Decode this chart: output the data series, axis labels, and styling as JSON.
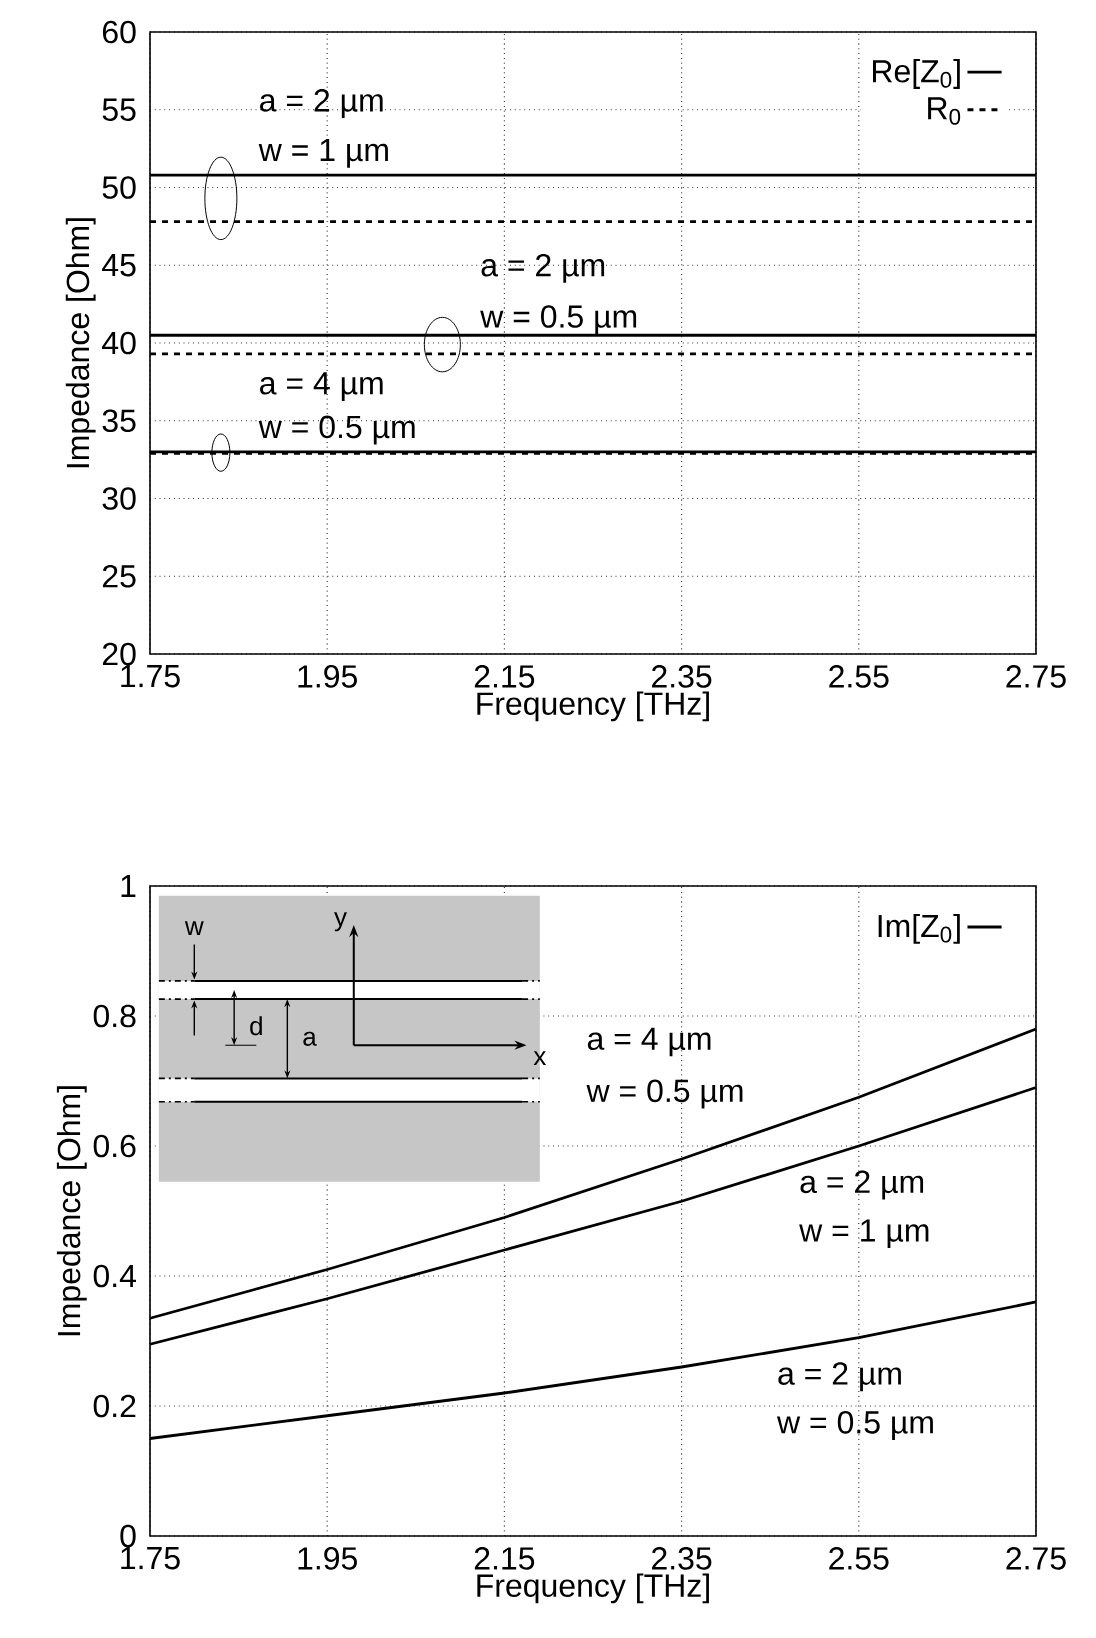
{
  "chart_data": [
    {
      "type": "line",
      "xlabel": "Frequency [THz]",
      "ylabel": "Impedance [Ohm]",
      "xlim": [
        1.75,
        2.75
      ],
      "ylim": [
        20,
        60
      ],
      "xticks": [
        1.75,
        1.95,
        2.15,
        2.35,
        2.55,
        2.75
      ],
      "yticks": [
        20,
        25,
        30,
        35,
        40,
        45,
        50,
        55,
        60
      ],
      "grid": true,
      "legend": "top right",
      "x": [
        1.75,
        2.75
      ],
      "series": [
        {
          "name": "Re[Z$_{0}$]",
          "color": "#000000",
          "line_style": "solid",
          "values": [
            50.8,
            50.8
          ]
        },
        {
          "color": "#000000",
          "line_style": "solid",
          "values": [
            40.5,
            40.5
          ]
        },
        {
          "color": "#000000",
          "line_style": "solid",
          "values": [
            33.0,
            33.0
          ]
        },
        {
          "name": "R$_{0}$",
          "color": "#000000",
          "line_style": "dashed",
          "values": [
            47.8,
            47.8
          ]
        },
        {
          "color": "#000000",
          "line_style": "dashed",
          "values": [
            39.3,
            39.3
          ]
        },
        {
          "color": "#000000",
          "line_style": "dashed",
          "values": [
            32.9,
            32.9
          ]
        }
      ],
      "annotations": [
        "a = 2 µm",
        "w = 1 µm",
        "a = 2 µm",
        "w = 0.5 µm",
        "a = 4 µm",
        "w = 0.5 µm"
      ]
    },
    {
      "type": "line",
      "xlabel": "Frequency [THz]",
      "ylabel": "Impedance [Ohm]",
      "xlim": [
        1.75,
        2.75
      ],
      "ylim": [
        0,
        1
      ],
      "xticks": [
        1.75,
        1.95,
        2.15,
        2.35,
        2.55,
        2.75
      ],
      "yticks": [
        0,
        0.2,
        0.4,
        0.6,
        0.8,
        1
      ],
      "grid": true,
      "legend": "top right",
      "x": [
        1.75,
        1.95,
        2.15,
        2.35,
        2.55,
        2.75
      ],
      "series": [
        {
          "name": "Im[Z$_{0}$]",
          "color": "#000000",
          "line_style": "solid",
          "values": [
            0.335,
            0.41,
            0.49,
            0.58,
            0.675,
            0.78
          ]
        },
        {
          "color": "#000000",
          "line_style": "solid",
          "values": [
            0.295,
            0.365,
            0.44,
            0.515,
            0.6,
            0.69
          ]
        },
        {
          "color": "#000000",
          "line_style": "solid",
          "values": [
            0.15,
            0.185,
            0.22,
            0.26,
            0.305,
            0.36
          ]
        }
      ],
      "annotations": [
        "a = 4 µm",
        "w = 0.5 µm",
        "a = 2 µm",
        "w = 1 µm",
        "a = 2 µm",
        "w = 0.5 µm",
        "w",
        "d",
        "a",
        "y",
        "x"
      ]
    }
  ]
}
